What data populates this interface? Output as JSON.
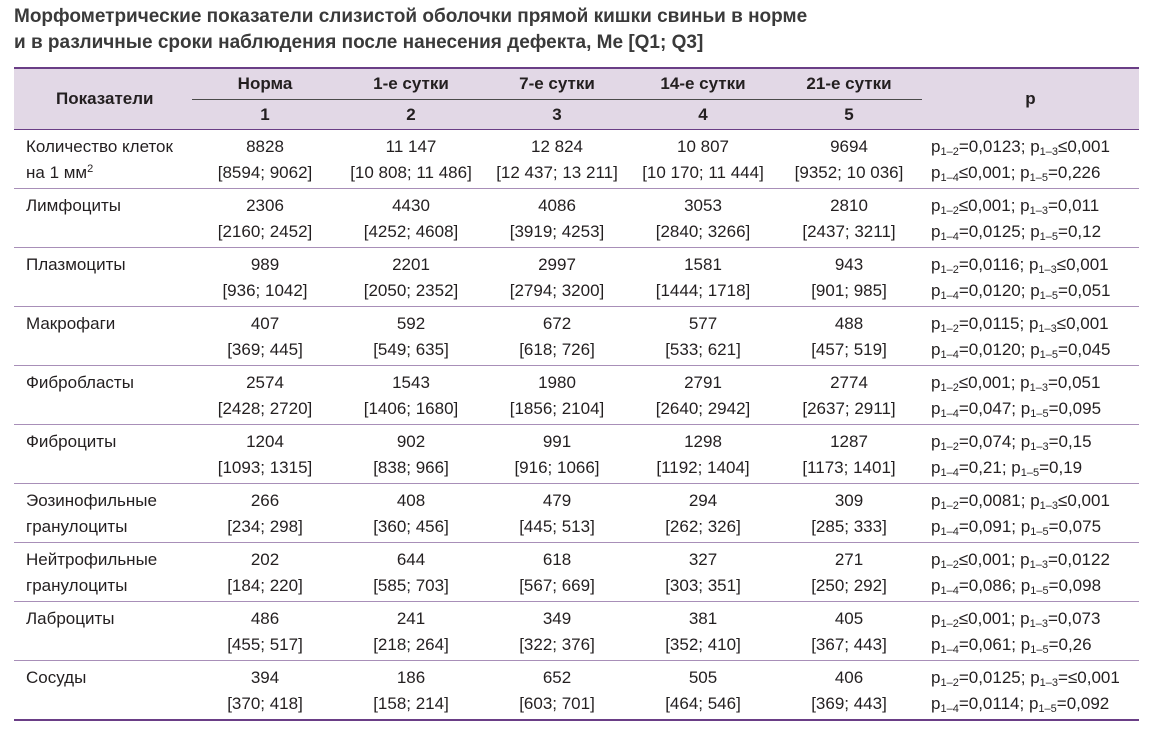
{
  "title": {
    "line1": "Морфометрические показатели слизистой оболочки прямой кишки свиньи в норме",
    "line2": "и в различные сроки наблюдения после нанесения дефекта, Ме [Q1; Q3]"
  },
  "header": {
    "indicator": "Показатели",
    "groups": [
      "Норма",
      "1-е сутки",
      "7-е сутки",
      "14-е сутки",
      "21-е сутки"
    ],
    "numbers": [
      "1",
      "2",
      "3",
      "4",
      "5"
    ],
    "p": "p"
  },
  "rows": [
    {
      "label1": "Количество клеток",
      "label2": "на 1 мм",
      "label2_sup": "2",
      "cells": [
        {
          "me": "8828",
          "q": "[8594; 9062]"
        },
        {
          "me": "11 147",
          "q": "[10 808; 11 486]"
        },
        {
          "me": "12 824",
          "q": "[12 437; 13 211]"
        },
        {
          "me": "10 807",
          "q": "[10 170; 11 444]"
        },
        {
          "me": "9694",
          "q": "[9352; 10 036]"
        }
      ],
      "p": {
        "a_sub": "1–2",
        "a_val": "=0,0123; ",
        "b_sub": "1–3",
        "b_val": "≤0,001",
        "c_sub": "1–4",
        "c_val": "≤0,001; ",
        "d_sub": "1–5",
        "d_val": "=0,226"
      }
    },
    {
      "label1": "Лимфоциты",
      "label2": "",
      "label2_sup": "",
      "cells": [
        {
          "me": "2306",
          "q": "[2160; 2452]"
        },
        {
          "me": "4430",
          "q": "[4252; 4608]"
        },
        {
          "me": "4086",
          "q": "[3919; 4253]"
        },
        {
          "me": "3053",
          "q": "[2840; 3266]"
        },
        {
          "me": "2810",
          "q": "[2437; 3211]"
        }
      ],
      "p": {
        "a_sub": "1–2",
        "a_val": "≤0,001; ",
        "b_sub": "1–3",
        "b_val": "=0,011",
        "c_sub": "1–4",
        "c_val": "=0,0125; ",
        "d_sub": "1–5",
        "d_val": "=0,12"
      }
    },
    {
      "label1": "Плазмоциты",
      "label2": "",
      "label2_sup": "",
      "cells": [
        {
          "me": "989",
          "q": "[936; 1042]"
        },
        {
          "me": "2201",
          "q": "[2050; 2352]"
        },
        {
          "me": "2997",
          "q": "[2794; 3200]"
        },
        {
          "me": "1581",
          "q": "[1444; 1718]"
        },
        {
          "me": "943",
          "q": "[901; 985]"
        }
      ],
      "p": {
        "a_sub": "1–2",
        "a_val": "=0,0116; ",
        "b_sub": "1–3",
        "b_val": "≤0,001",
        "c_sub": "1–4",
        "c_val": "=0,0120; ",
        "d_sub": "1–5",
        "d_val": "=0,051"
      }
    },
    {
      "label1": "Макрофаги",
      "label2": "",
      "label2_sup": "",
      "cells": [
        {
          "me": "407",
          "q": "[369; 445]"
        },
        {
          "me": "592",
          "q": "[549; 635]"
        },
        {
          "me": "672",
          "q": "[618; 726]"
        },
        {
          "me": "577",
          "q": "[533; 621]"
        },
        {
          "me": "488",
          "q": "[457; 519]"
        }
      ],
      "p": {
        "a_sub": "1–2",
        "a_val": "=0,0115; ",
        "b_sub": "1–3",
        "b_val": "≤0,001",
        "c_sub": "1–4",
        "c_val": "=0,0120; ",
        "d_sub": "1–5",
        "d_val": "=0,045"
      }
    },
    {
      "label1": "Фибробласты",
      "label2": "",
      "label2_sup": "",
      "cells": [
        {
          "me": "2574",
          "q": "[2428; 2720]"
        },
        {
          "me": "1543",
          "q": "[1406; 1680]"
        },
        {
          "me": "1980",
          "q": "[1856; 2104]"
        },
        {
          "me": "2791",
          "q": "[2640; 2942]"
        },
        {
          "me": "2774",
          "q": "[2637; 2911]"
        }
      ],
      "p": {
        "a_sub": "1–2",
        "a_val": "≤0,001; ",
        "b_sub": "1–3",
        "b_val": "=0,051",
        "c_sub": "1–4",
        "c_val": "=0,047; ",
        "d_sub": "1–5",
        "d_val": "=0,095"
      }
    },
    {
      "label1": "Фиброциты",
      "label2": "",
      "label2_sup": "",
      "cells": [
        {
          "me": "1204",
          "q": "[1093; 1315]"
        },
        {
          "me": "902",
          "q": "[838; 966]"
        },
        {
          "me": "991",
          "q": "[916; 1066]"
        },
        {
          "me": "1298",
          "q": "[1192; 1404]"
        },
        {
          "me": "1287",
          "q": "[1173; 1401]"
        }
      ],
      "p": {
        "a_sub": "1–2",
        "a_val": "=0,074; ",
        "b_sub": "1–3",
        "b_val": "=0,15",
        "c_sub": "1–4",
        "c_val": "=0,21; ",
        "d_sub": "1–5",
        "d_val": "=0,19"
      }
    },
    {
      "label1": "Эозинофильные",
      "label2": "гранулоциты",
      "label2_sup": "",
      "cells": [
        {
          "me": "266",
          "q": "[234; 298]"
        },
        {
          "me": "408",
          "q": "[360; 456]"
        },
        {
          "me": "479",
          "q": "[445; 513]"
        },
        {
          "me": "294",
          "q": "[262; 326]"
        },
        {
          "me": "309",
          "q": "[285; 333]"
        }
      ],
      "p": {
        "a_sub": "1–2",
        "a_val": "=0,0081; ",
        "b_sub": "1–3",
        "b_val": "≤0,001",
        "c_sub": "1–4",
        "c_val": "=0,091; ",
        "d_sub": "1–5",
        "d_val": "=0,075"
      }
    },
    {
      "label1": "Нейтрофильные",
      "label2": "гранулоциты",
      "label2_sup": "",
      "cells": [
        {
          "me": "202",
          "q": "[184; 220]"
        },
        {
          "me": "644",
          "q": "[585; 703]"
        },
        {
          "me": "618",
          "q": "[567; 669]"
        },
        {
          "me": "327",
          "q": "[303; 351]"
        },
        {
          "me": "271",
          "q": "[250; 292]"
        }
      ],
      "p": {
        "a_sub": "1–2",
        "a_val": "≤0,001; ",
        "b_sub": "1–3",
        "b_val": "=0,0122",
        "c_sub": "1–4",
        "c_val": "=0,086; ",
        "d_sub": "1–5",
        "d_val": "=0,098"
      }
    },
    {
      "label1": "Лаброциты",
      "label2": "",
      "label2_sup": "",
      "cells": [
        {
          "me": "486",
          "q": "[455; 517]"
        },
        {
          "me": "241",
          "q": "[218; 264]"
        },
        {
          "me": "349",
          "q": "[322; 376]"
        },
        {
          "me": "381",
          "q": "[352; 410]"
        },
        {
          "me": "405",
          "q": "[367; 443]"
        }
      ],
      "p": {
        "a_sub": "1–2",
        "a_val": "≤0,001; ",
        "b_sub": "1–3",
        "b_val": "=0,073",
        "c_sub": "1–4",
        "c_val": "=0,061; ",
        "d_sub": "1–5",
        "d_val": "=0,26"
      }
    },
    {
      "label1": "Сосуды",
      "label2": "",
      "label2_sup": "",
      "cells": [
        {
          "me": "394",
          "q": "[370; 418]"
        },
        {
          "me": "186",
          "q": "[158; 214]"
        },
        {
          "me": "652",
          "q": "[603; 701]"
        },
        {
          "me": "505",
          "q": "[464; 546]"
        },
        {
          "me": "406",
          "q": "[369; 443]"
        }
      ],
      "p": {
        "a_sub": "1–2",
        "a_val": "=0,0125; ",
        "b_sub": "1–3",
        "b_val": "=≤0,001",
        "c_sub": "1–4",
        "c_val": "=0,0114; ",
        "d_sub": "1–5",
        "d_val": "=0,092"
      }
    }
  ],
  "colors": {
    "header_bg": "#e2d8e6",
    "rule": "#6a3e86",
    "row_divider": "#a88fb8",
    "title_text": "#3a3a3a"
  }
}
